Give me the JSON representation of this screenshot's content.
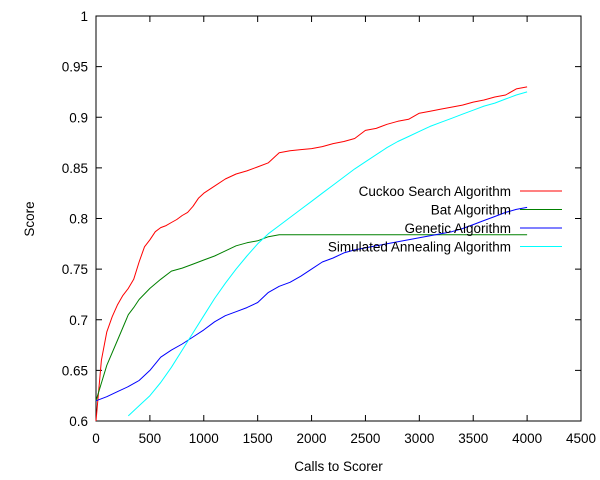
{
  "chart_data": {
    "type": "line",
    "title": "",
    "xlabel": "Calls to Scorer",
    "ylabel": "Score",
    "xlim": [
      0,
      4500
    ],
    "ylim": [
      0.6,
      1
    ],
    "xticks": [
      0,
      500,
      1000,
      1500,
      2000,
      2500,
      3000,
      3500,
      4000,
      4500
    ],
    "xtick_labels": [
      "0",
      "500",
      "1000",
      "1500",
      "2000",
      "2500",
      "3000",
      "3500",
      "4000",
      "4500"
    ],
    "yticks": [
      0.6,
      0.65,
      0.7,
      0.75,
      0.8,
      0.85,
      0.9,
      0.95,
      1
    ],
    "ytick_labels": [
      "0.6",
      "0.65",
      "0.7",
      "0.75",
      "0.8",
      "0.85",
      "0.9",
      "0.95",
      "1"
    ],
    "grid": false,
    "legend_position": "right",
    "series": [
      {
        "name": "Cuckoo Search Algorithm",
        "color": "#ff0000",
        "x": [
          0,
          50,
          100,
          150,
          200,
          250,
          300,
          350,
          400,
          450,
          500,
          550,
          600,
          650,
          700,
          750,
          800,
          850,
          900,
          950,
          1000,
          1100,
          1200,
          1300,
          1400,
          1500,
          1600,
          1700,
          1800,
          1900,
          2000,
          2100,
          2200,
          2300,
          2400,
          2500,
          2600,
          2700,
          2800,
          2900,
          3000,
          3100,
          3200,
          3300,
          3400,
          3500,
          3600,
          3700,
          3800,
          3900,
          4000
        ],
        "y": [
          0.6,
          0.66,
          0.688,
          0.703,
          0.715,
          0.724,
          0.731,
          0.74,
          0.757,
          0.772,
          0.779,
          0.787,
          0.791,
          0.793,
          0.796,
          0.799,
          0.803,
          0.806,
          0.812,
          0.82,
          0.825,
          0.832,
          0.839,
          0.844,
          0.847,
          0.851,
          0.855,
          0.865,
          0.867,
          0.868,
          0.869,
          0.871,
          0.874,
          0.876,
          0.879,
          0.887,
          0.889,
          0.893,
          0.896,
          0.898,
          0.904,
          0.906,
          0.908,
          0.91,
          0.912,
          0.915,
          0.917,
          0.92,
          0.922,
          0.928,
          0.93
        ]
      },
      {
        "name": "Bat Algorithm",
        "color": "#008000",
        "x": [
          0,
          100,
          200,
          300,
          350,
          400,
          500,
          600,
          700,
          800,
          900,
          1000,
          1100,
          1200,
          1300,
          1400,
          1500,
          1600,
          1700,
          1800,
          2000,
          2500,
          3000,
          3500,
          4000
        ],
        "y": [
          0.62,
          0.655,
          0.68,
          0.705,
          0.712,
          0.72,
          0.731,
          0.74,
          0.748,
          0.751,
          0.755,
          0.759,
          0.763,
          0.768,
          0.773,
          0.776,
          0.778,
          0.782,
          0.784,
          0.784,
          0.784,
          0.784,
          0.784,
          0.784,
          0.784
        ]
      },
      {
        "name": "Genetic Algorithm",
        "color": "#0000ff",
        "x": [
          0,
          100,
          200,
          300,
          400,
          500,
          600,
          700,
          800,
          900,
          1000,
          1100,
          1200,
          1300,
          1400,
          1500,
          1600,
          1700,
          1800,
          1900,
          2000,
          2100,
          2200,
          2300,
          2400,
          2500,
          2600,
          2700,
          2800,
          2900,
          3000,
          3100,
          3200,
          3300,
          3400,
          3500,
          3600,
          3700,
          3800,
          3900,
          4000
        ],
        "y": [
          0.62,
          0.624,
          0.629,
          0.634,
          0.64,
          0.65,
          0.663,
          0.67,
          0.676,
          0.683,
          0.69,
          0.698,
          0.704,
          0.708,
          0.712,
          0.717,
          0.727,
          0.733,
          0.737,
          0.743,
          0.75,
          0.757,
          0.761,
          0.766,
          0.769,
          0.771,
          0.773,
          0.775,
          0.777,
          0.779,
          0.781,
          0.783,
          0.785,
          0.787,
          0.79,
          0.794,
          0.798,
          0.802,
          0.806,
          0.809,
          0.811
        ]
      },
      {
        "name": "Simulated Annealing Algorithm",
        "color": "#00ffff",
        "x": [
          300,
          400,
          500,
          600,
          700,
          800,
          900,
          1000,
          1100,
          1200,
          1300,
          1400,
          1500,
          1600,
          1700,
          1800,
          1900,
          2000,
          2100,
          2200,
          2300,
          2400,
          2500,
          2600,
          2700,
          2800,
          2900,
          3000,
          3100,
          3200,
          3300,
          3400,
          3500,
          3600,
          3700,
          3800,
          3900,
          4000
        ],
        "y": [
          0.605,
          0.615,
          0.625,
          0.638,
          0.653,
          0.67,
          0.687,
          0.704,
          0.721,
          0.736,
          0.75,
          0.763,
          0.775,
          0.785,
          0.793,
          0.801,
          0.809,
          0.817,
          0.825,
          0.833,
          0.841,
          0.849,
          0.856,
          0.863,
          0.87,
          0.876,
          0.881,
          0.886,
          0.891,
          0.895,
          0.899,
          0.903,
          0.907,
          0.911,
          0.914,
          0.918,
          0.922,
          0.925
        ]
      }
    ]
  }
}
